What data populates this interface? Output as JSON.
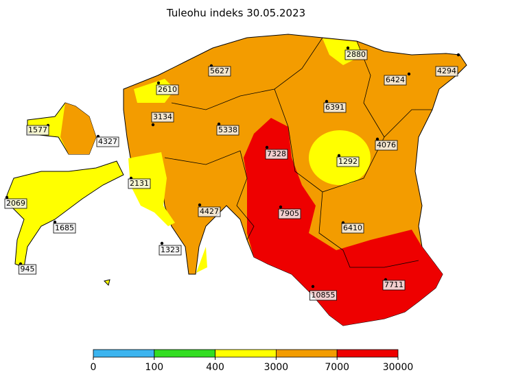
{
  "title": "Tuleohu indeks 30.05.2023",
  "stations": [
    {
      "value": 2880
    },
    {
      "value": 4294
    },
    {
      "value": 5627
    },
    {
      "value": 6424
    },
    {
      "value": 2610
    },
    {
      "value": 6391
    },
    {
      "value": 3134
    },
    {
      "value": 5338
    },
    {
      "value": 1577
    },
    {
      "value": 4327
    },
    {
      "value": 4076
    },
    {
      "value": 7328
    },
    {
      "value": 1292
    },
    {
      "value": 2131
    },
    {
      "value": 2069
    },
    {
      "value": 4427
    },
    {
      "value": 7905
    },
    {
      "value": 1685
    },
    {
      "value": 6410
    },
    {
      "value": 1323
    },
    {
      "value": 945
    },
    {
      "value": 10855
    },
    {
      "value": 7711
    }
  ],
  "legend": {
    "bounds": [
      0,
      100,
      400,
      3000,
      7000,
      30000
    ],
    "colors": [
      "#3cb4ef",
      "#33dd22",
      "#ffff00",
      "#f39c00",
      "#ee0000"
    ]
  }
}
